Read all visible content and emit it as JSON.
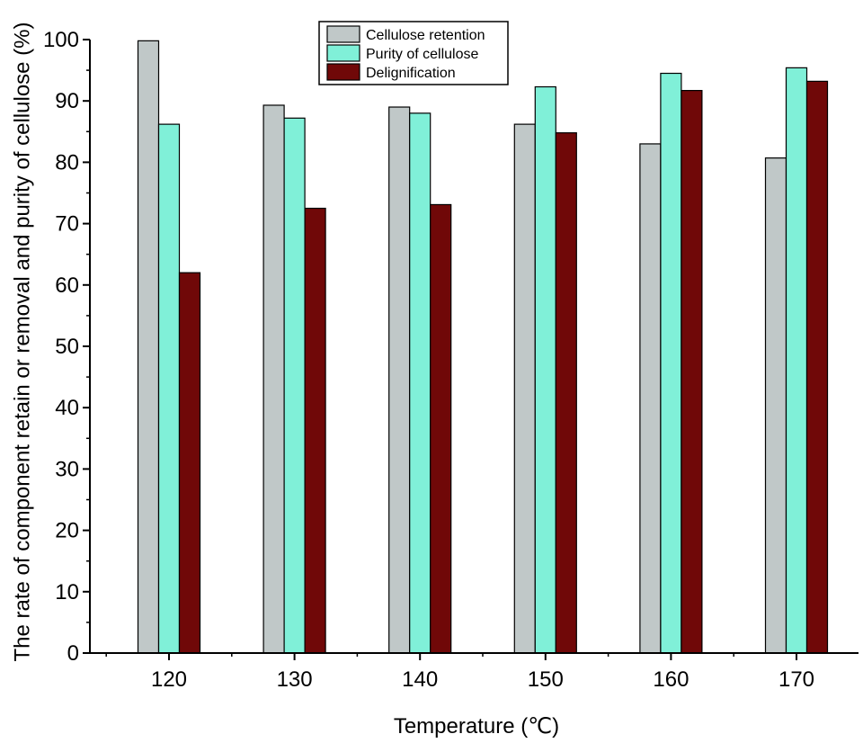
{
  "chart_data": {
    "type": "bar",
    "title": "",
    "xlabel": "Temperature (℃)",
    "ylabel": "The rate of component retain or removal and purity of cellulose (%)",
    "categories": [
      "120",
      "130",
      "140",
      "150",
      "160",
      "170"
    ],
    "ylim": [
      0,
      100
    ],
    "yticks": [
      "0",
      "10",
      "20",
      "30",
      "40",
      "50",
      "60",
      "70",
      "80",
      "90",
      "100"
    ],
    "grid": false,
    "legend_position": "top-center",
    "series": [
      {
        "name": "Cellulose retention",
        "color": "#c0c8c8",
        "values": [
          99.8,
          89.3,
          89.0,
          86.2,
          83.0,
          80.7
        ]
      },
      {
        "name": "Purity of cellulose",
        "color": "#80f0d8",
        "values": [
          86.2,
          87.2,
          88.0,
          92.3,
          94.5,
          95.4
        ]
      },
      {
        "name": "Delignification",
        "color": "#700808",
        "values": [
          62.0,
          72.5,
          73.1,
          84.8,
          91.7,
          93.2
        ]
      }
    ]
  }
}
